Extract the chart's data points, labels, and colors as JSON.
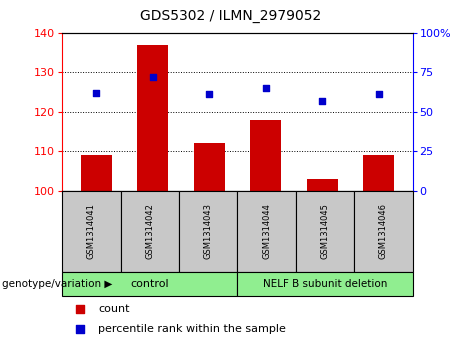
{
  "title": "GDS5302 / ILMN_2979052",
  "samples": [
    "GSM1314041",
    "GSM1314042",
    "GSM1314043",
    "GSM1314044",
    "GSM1314045",
    "GSM1314046"
  ],
  "counts": [
    109,
    137,
    112,
    118,
    103,
    109
  ],
  "percentiles": [
    62,
    72,
    61,
    65,
    57,
    61
  ],
  "ylim_left": [
    100,
    140
  ],
  "ylim_right": [
    0,
    100
  ],
  "yticks_left": [
    100,
    110,
    120,
    130,
    140
  ],
  "yticks_right": [
    0,
    25,
    50,
    75,
    100
  ],
  "bar_color": "#CC0000",
  "dot_color": "#0000CC",
  "bar_width": 0.55,
  "sample_box_color": "#C8C8C8",
  "control_color": "#90EE90",
  "deletion_color": "#90EE90",
  "legend_count_label": "count",
  "legend_percentile_label": "percentile rank within the sample",
  "title_fontsize": 10,
  "tick_fontsize": 8,
  "sample_fontsize": 6,
  "geno_fontsize": 8,
  "legend_fontsize": 8
}
